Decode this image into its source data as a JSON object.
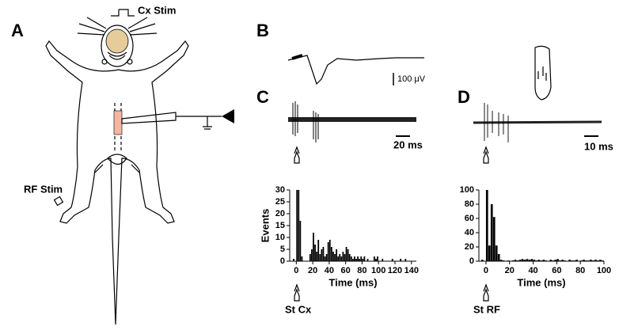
{
  "figure": {
    "panel_labels": [
      "A",
      "B",
      "C",
      "D"
    ],
    "cx_stim": "Cx Stim",
    "rf_stim": "RF Stim",
    "scale_b": "100 μV",
    "scale_c": "20 ms",
    "scale_d": "10 ms",
    "stim_c": "St Cx",
    "stim_d": "St RF"
  },
  "chart_data": [
    {
      "type": "histogram",
      "y_label": "Events",
      "x_label": "Time (ms)",
      "color": "#000000",
      "bins": [
        -4,
        -2,
        0,
        2,
        4,
        6,
        8,
        10,
        12,
        14,
        16,
        18,
        20,
        22,
        24,
        26,
        28,
        30,
        32,
        34,
        36,
        38,
        40,
        42,
        44,
        46,
        48,
        50,
        52,
        54,
        56,
        58,
        60,
        62,
        64,
        66,
        68,
        70,
        72,
        74,
        76,
        78,
        80,
        82,
        84,
        86,
        88,
        90,
        92,
        94,
        96,
        98,
        100,
        102,
        104,
        106,
        108,
        110,
        112,
        114,
        116,
        118,
        120,
        122,
        124,
        126,
        128,
        130,
        132,
        134,
        136,
        138,
        140,
        142,
        144,
        146
      ],
      "values": [
        1,
        0,
        30,
        30,
        17,
        2,
        0,
        0,
        0,
        0,
        3,
        5,
        12,
        7,
        4,
        9,
        3,
        5,
        6,
        2,
        3,
        8,
        9,
        6,
        4,
        3,
        5,
        2,
        3,
        2,
        4,
        3,
        6,
        5,
        3,
        2,
        1,
        2,
        1,
        2,
        1,
        2,
        1,
        2,
        0,
        1,
        0,
        0,
        0,
        2,
        1,
        2,
        0,
        0,
        1,
        0,
        0,
        0,
        0,
        0,
        1,
        0,
        0,
        0,
        0,
        1,
        0,
        0,
        1,
        0,
        0,
        0,
        0,
        0,
        0
      ],
      "xlim": [
        -8,
        146
      ],
      "ylim": [
        0,
        30
      ],
      "xticks": [
        0,
        20,
        40,
        60,
        80,
        100,
        120,
        140
      ],
      "yticks": [
        0,
        5,
        10,
        15,
        20,
        25,
        30
      ]
    },
    {
      "type": "histogram",
      "x_label": "Time (ms)",
      "color": "#000000",
      "bins": [
        -4,
        -2,
        0,
        2,
        4,
        6,
        8,
        10,
        12,
        14,
        16,
        18,
        20,
        22,
        24,
        26,
        28,
        30,
        32,
        34,
        36,
        38,
        40,
        42,
        44,
        46,
        48,
        50,
        52,
        54,
        56,
        58,
        60,
        62,
        64,
        66,
        68,
        70,
        72,
        74,
        76,
        78,
        80,
        82,
        84,
        86,
        88,
        90,
        92,
        94,
        96,
        98,
        100
      ],
      "values": [
        2,
        0,
        100,
        22,
        80,
        62,
        22,
        10,
        2,
        1,
        0,
        1,
        0,
        1,
        2,
        1,
        2,
        3,
        2,
        3,
        2,
        3,
        2,
        1,
        2,
        1,
        2,
        1,
        0,
        2,
        1,
        2,
        3,
        1,
        2,
        1,
        0,
        2,
        1,
        1,
        2,
        0,
        1,
        2,
        1,
        1,
        2,
        1,
        2,
        1,
        2,
        1
      ],
      "xlim": [
        -6,
        100
      ],
      "ylim": [
        0,
        100
      ],
      "xticks": [
        0,
        20,
        40,
        60,
        80,
        100
      ],
      "yticks": [
        0,
        20,
        40,
        60,
        80,
        100
      ]
    }
  ]
}
